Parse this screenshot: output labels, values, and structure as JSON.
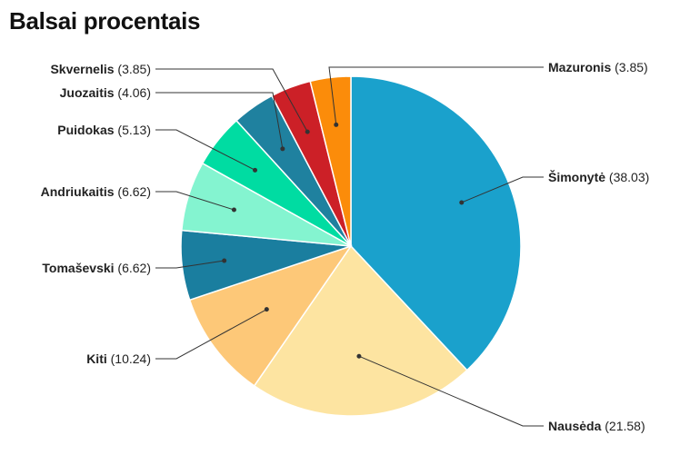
{
  "chart_data": {
    "type": "pie",
    "title": "Balsai procentais",
    "categories": [
      "Šimonytė",
      "Nausėda",
      "Kiti",
      "Tomaševski",
      "Andriukaitis",
      "Puidokas",
      "Juozaitis",
      "Skvernelis",
      "Mazuronis"
    ],
    "values": [
      38.03,
      21.58,
      10.24,
      6.62,
      6.62,
      5.13,
      4.06,
      3.85,
      3.85
    ],
    "value_labels": [
      "38.03",
      "21.58",
      "10.24",
      "6.62",
      "6.62",
      "5.13",
      "4.06",
      "3.85",
      "3.85"
    ],
    "colors": [
      "#1aa1cc",
      "#fde4a1",
      "#fdc878",
      "#1a7e9f",
      "#84f4d0",
      "#00dca2",
      "#1f819f",
      "#cc2027",
      "#fb8c0a"
    ],
    "start_angle": "12 o'clock",
    "direction": "clockwise",
    "legend": "none"
  }
}
